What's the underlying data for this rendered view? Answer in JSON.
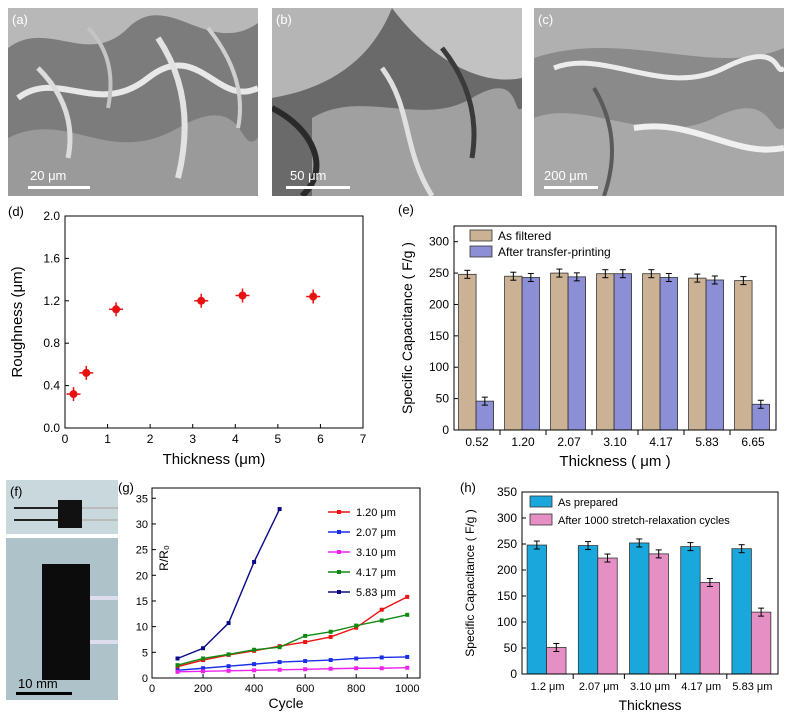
{
  "panels": {
    "a": {
      "label": "(a)",
      "scale": "20 μm"
    },
    "b": {
      "label": "(b)",
      "scale": "50 μm"
    },
    "c": {
      "label": "(c)",
      "scale": "200 μm"
    },
    "f": {
      "label": "(f)",
      "scale": "10 mm"
    }
  },
  "chart_data": [
    {
      "panel": "(d)",
      "type": "scatter",
      "xlabel": "Thickness (μm)",
      "ylabel": "Roughness (μm)",
      "xlim": [
        0,
        7
      ],
      "ylim": [
        0.0,
        2.0
      ],
      "xticks": [
        "0",
        "1",
        "2",
        "3",
        "4",
        "5",
        "6",
        "7"
      ],
      "yticks": [
        "0.0",
        "0.4",
        "0.8",
        "1.2",
        "1.6",
        "2.0"
      ],
      "x": [
        0.2,
        0.5,
        1.2,
        3.2,
        4.17,
        5.83
      ],
      "y": [
        0.32,
        0.52,
        1.12,
        1.2,
        1.25,
        1.24
      ],
      "color": "#e81010"
    },
    {
      "panel": "(e)",
      "type": "bar",
      "xlabel": "Thickness ( μm )",
      "ylabel": "Specific Capacitance ( F/g )",
      "ylim": [
        0,
        325
      ],
      "yticks": [
        "0",
        "50",
        "100",
        "150",
        "200",
        "250",
        "300"
      ],
      "categories": [
        "0.52",
        "1.20",
        "2.07",
        "3.10",
        "4.17",
        "5.83",
        "6.65"
      ],
      "series": [
        {
          "name": "As filtered",
          "values": [
            248,
            245,
            250,
            249,
            249,
            242,
            238
          ],
          "color": "#cbb295"
        },
        {
          "name": "After transfer-printing",
          "values": [
            46,
            243,
            244,
            249,
            243,
            239,
            41
          ],
          "color": "#8d8fd6"
        }
      ]
    },
    {
      "panel": "(g)",
      "type": "line",
      "xlabel": "Cycle",
      "ylabel": "R/R₀",
      "xlim": [
        0,
        1050
      ],
      "ylim": [
        0,
        37
      ],
      "xticks": [
        "0",
        "200",
        "400",
        "600",
        "800",
        "1000"
      ],
      "yticks": [
        "0",
        "5",
        "10",
        "15",
        "20",
        "25",
        "30",
        "35"
      ],
      "series": [
        {
          "name": "1.20 μm",
          "color": "#ee1111",
          "x": [
            100,
            200,
            300,
            400,
            500,
            600,
            700,
            800,
            900,
            1000
          ],
          "y": [
            2.2,
            3.5,
            4.5,
            5.3,
            6.2,
            7.0,
            8.0,
            9.8,
            13.3,
            15.8
          ]
        },
        {
          "name": "2.07 μm",
          "color": "#1a2ee8",
          "x": [
            100,
            200,
            300,
            400,
            500,
            600,
            700,
            800,
            900,
            1000
          ],
          "y": [
            1.5,
            1.9,
            2.3,
            2.7,
            3.1,
            3.3,
            3.5,
            3.8,
            4.0,
            4.1
          ]
        },
        {
          "name": "3.10 μm",
          "color": "#ee22ee",
          "x": [
            100,
            200,
            300,
            400,
            500,
            600,
            700,
            800,
            900,
            1000
          ],
          "y": [
            1.2,
            1.3,
            1.4,
            1.5,
            1.6,
            1.7,
            1.8,
            1.9,
            1.9,
            2.0
          ]
        },
        {
          "name": "4.17 μm",
          "color": "#118811",
          "x": [
            100,
            200,
            300,
            400,
            500,
            600,
            700,
            800,
            900,
            1000
          ],
          "y": [
            2.5,
            3.8,
            4.6,
            5.5,
            6.0,
            8.2,
            9.0,
            10.2,
            11.2,
            12.3
          ]
        },
        {
          "name": "5.83 μm",
          "color": "#0a0a88",
          "x": [
            100,
            200,
            300,
            400,
            500
          ],
          "y": [
            3.8,
            5.8,
            10.7,
            22.6,
            32.9
          ]
        }
      ]
    },
    {
      "panel": "(h)",
      "type": "bar",
      "xlabel": "Thickness",
      "ylabel": "Specific Capacitance ( F/g )",
      "ylim": [
        0,
        350
      ],
      "yticks": [
        "0",
        "50",
        "100",
        "150",
        "200",
        "250",
        "300",
        "350"
      ],
      "categories": [
        "1.2 μm",
        "2.07 μm",
        "3.10 μm",
        "4.17 μm",
        "5.83 μm"
      ],
      "series": [
        {
          "name": "As prepared",
          "values": [
            248,
            247,
            252,
            245,
            241
          ],
          "color": "#1aa8dc"
        },
        {
          "name": "After 1000 stretch-relaxation cycles",
          "values": [
            51,
            223,
            231,
            176,
            119
          ],
          "color": "#e58fc5"
        }
      ]
    }
  ]
}
